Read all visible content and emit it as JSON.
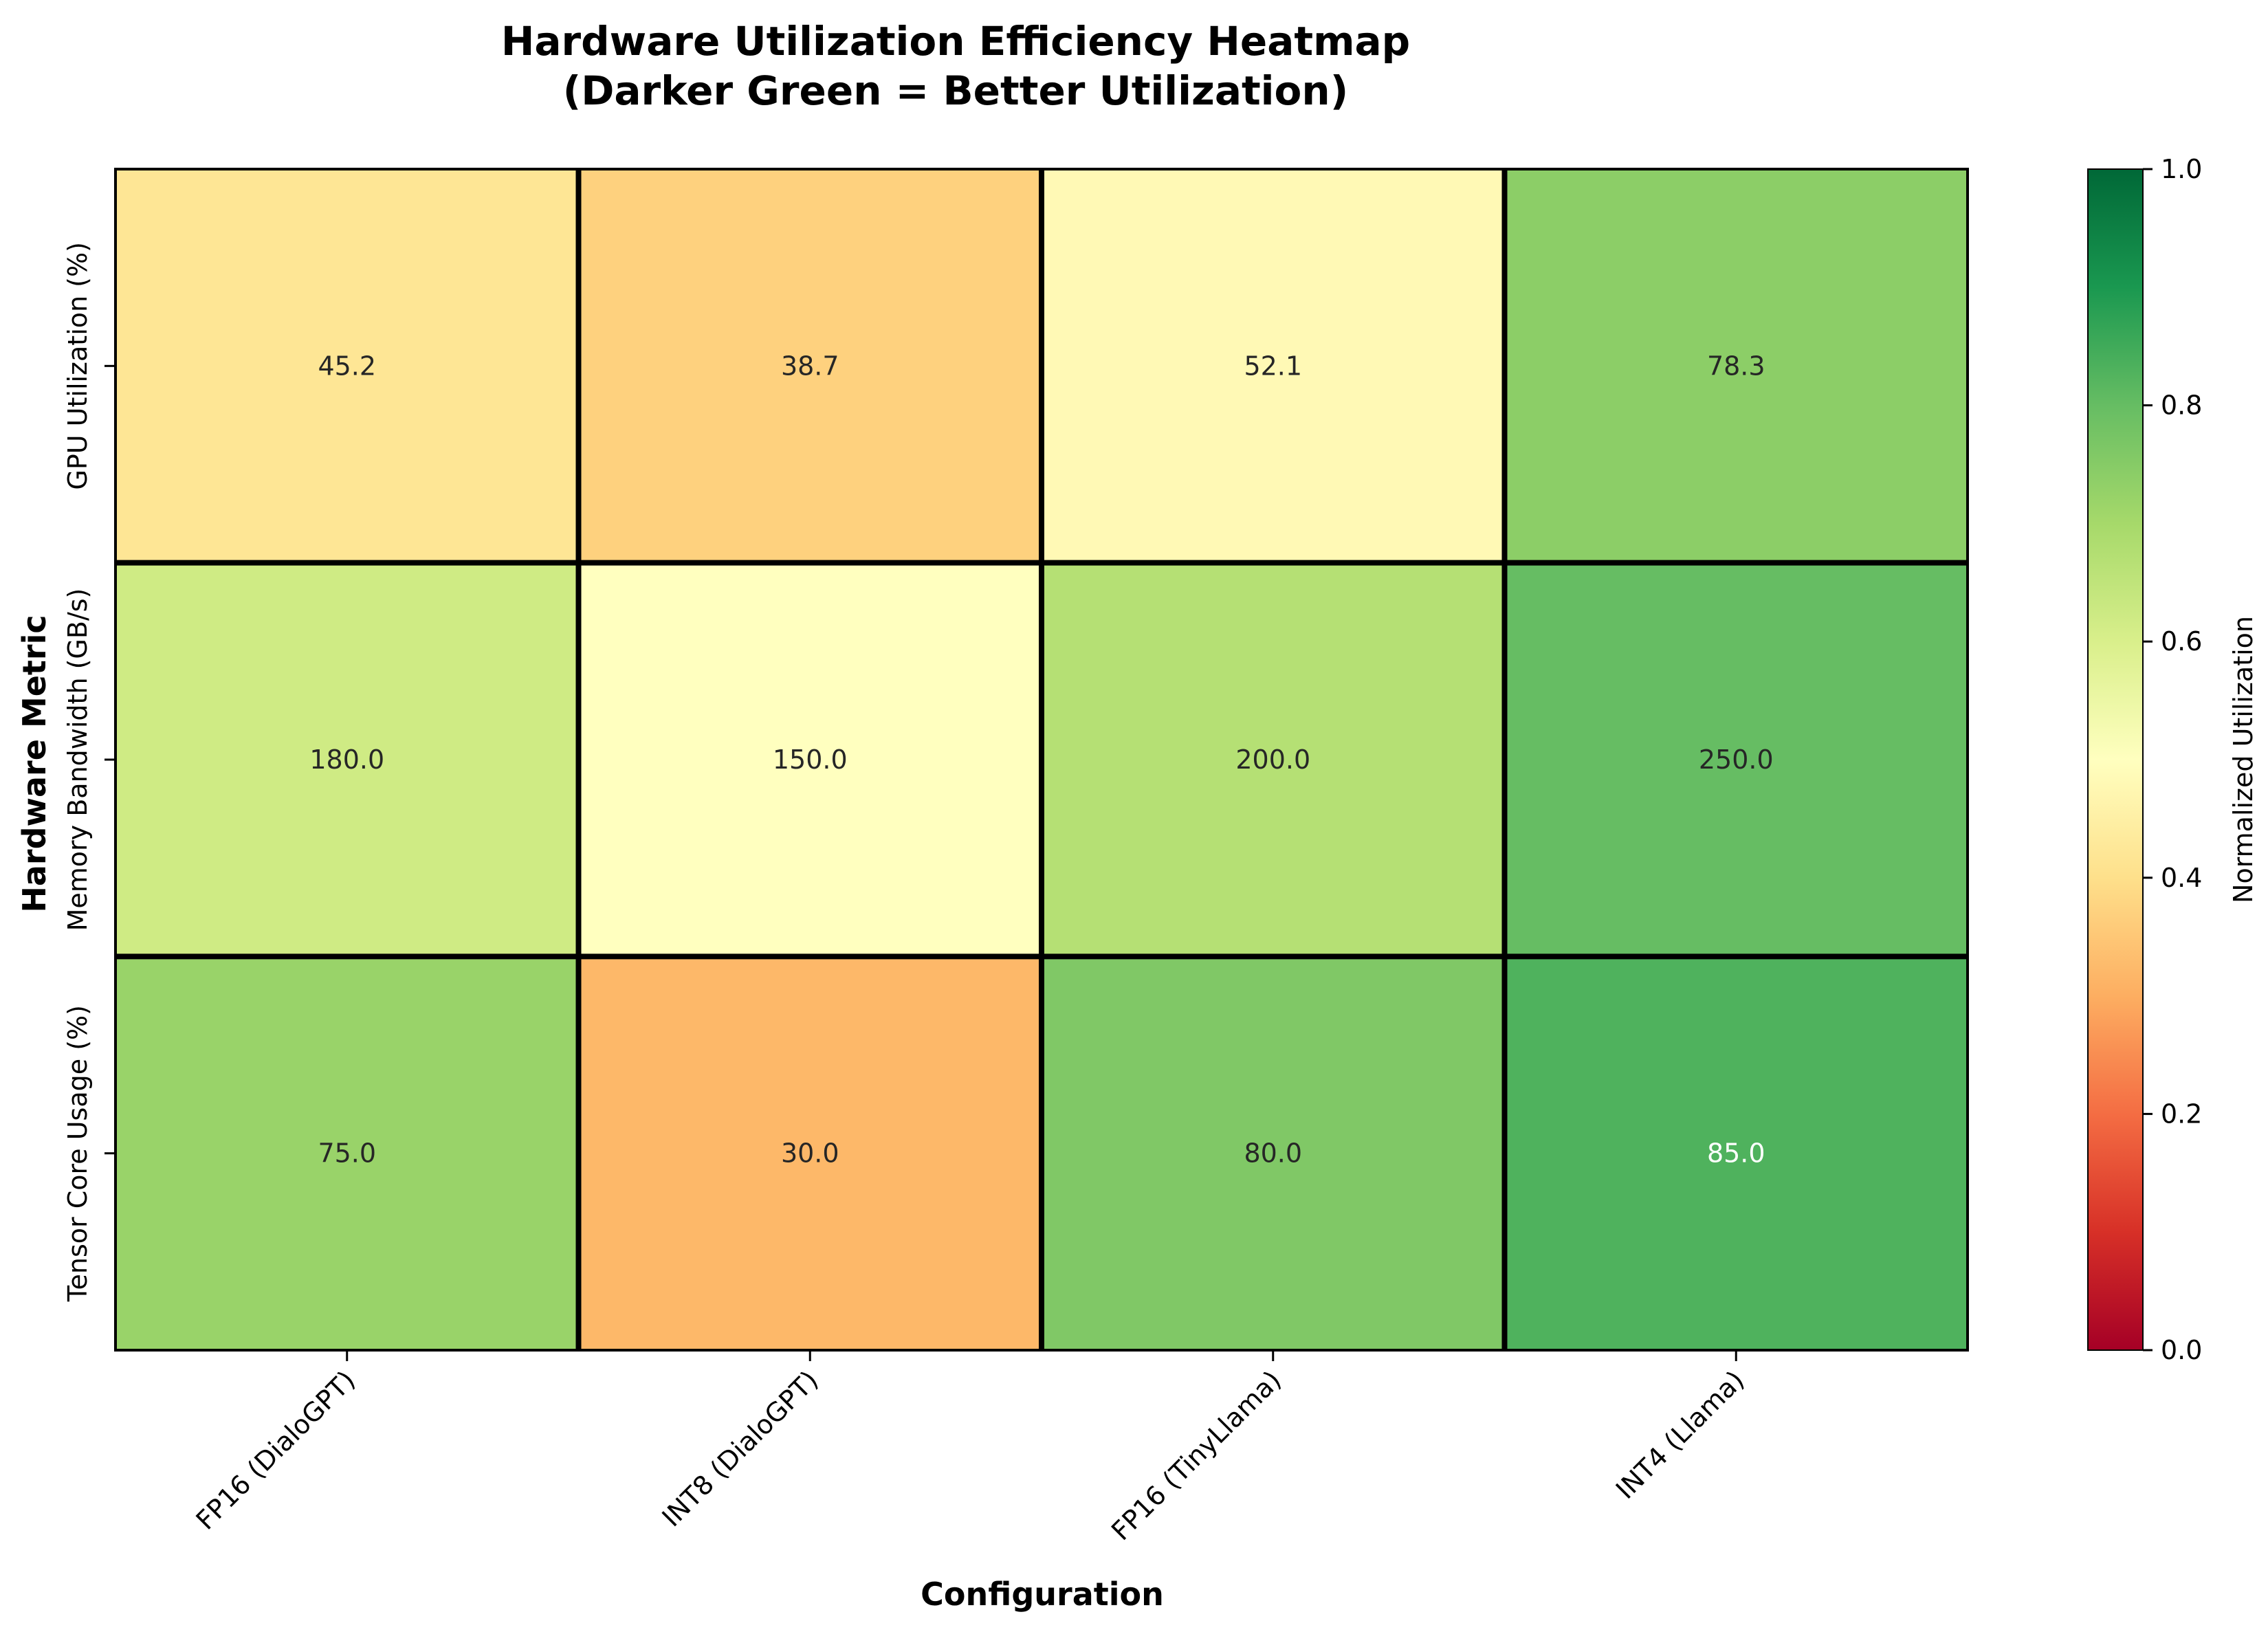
{
  "chart_data": {
    "type": "heatmap",
    "title": "Hardware Utilization Efficiency Heatmap",
    "subtitle": "(Darker Green = Better Utilization)",
    "xlabel": "Configuration",
    "ylabel": "Hardware Metric",
    "x_categories": [
      "FP16 (DialoGPT)",
      "INT8 (DialoGPT)",
      "FP16 (TinyLlama)",
      "INT4 (Llama)"
    ],
    "y_categories": [
      "GPU Utilization (%)",
      "Memory Bandwidth (GB/s)",
      "Tensor Core Usage (%)"
    ],
    "values": [
      [
        45.2,
        38.7,
        52.1,
        78.3
      ],
      [
        180.0,
        150.0,
        200.0,
        250.0
      ],
      [
        75.0,
        30.0,
        80.0,
        85.0
      ]
    ],
    "value_labels": [
      [
        "45.2",
        "38.7",
        "52.1",
        "78.3"
      ],
      [
        "180.0",
        "150.0",
        "200.0",
        "250.0"
      ],
      [
        "75.0",
        "30.0",
        "80.0",
        "85.0"
      ]
    ],
    "normalized": [
      [
        0.42,
        0.37,
        0.48,
        0.74
      ],
      [
        0.62,
        0.5,
        0.67,
        0.8
      ],
      [
        0.72,
        0.32,
        0.76,
        0.83
      ]
    ],
    "colormap": "RdYlGn",
    "colorbar": {
      "label": "Normalized Utilization",
      "range": [
        0.0,
        1.0
      ],
      "ticks": [
        "0.0",
        "0.2",
        "0.4",
        "0.6",
        "0.8",
        "1.0"
      ]
    },
    "legend": "colorbar-right"
  }
}
